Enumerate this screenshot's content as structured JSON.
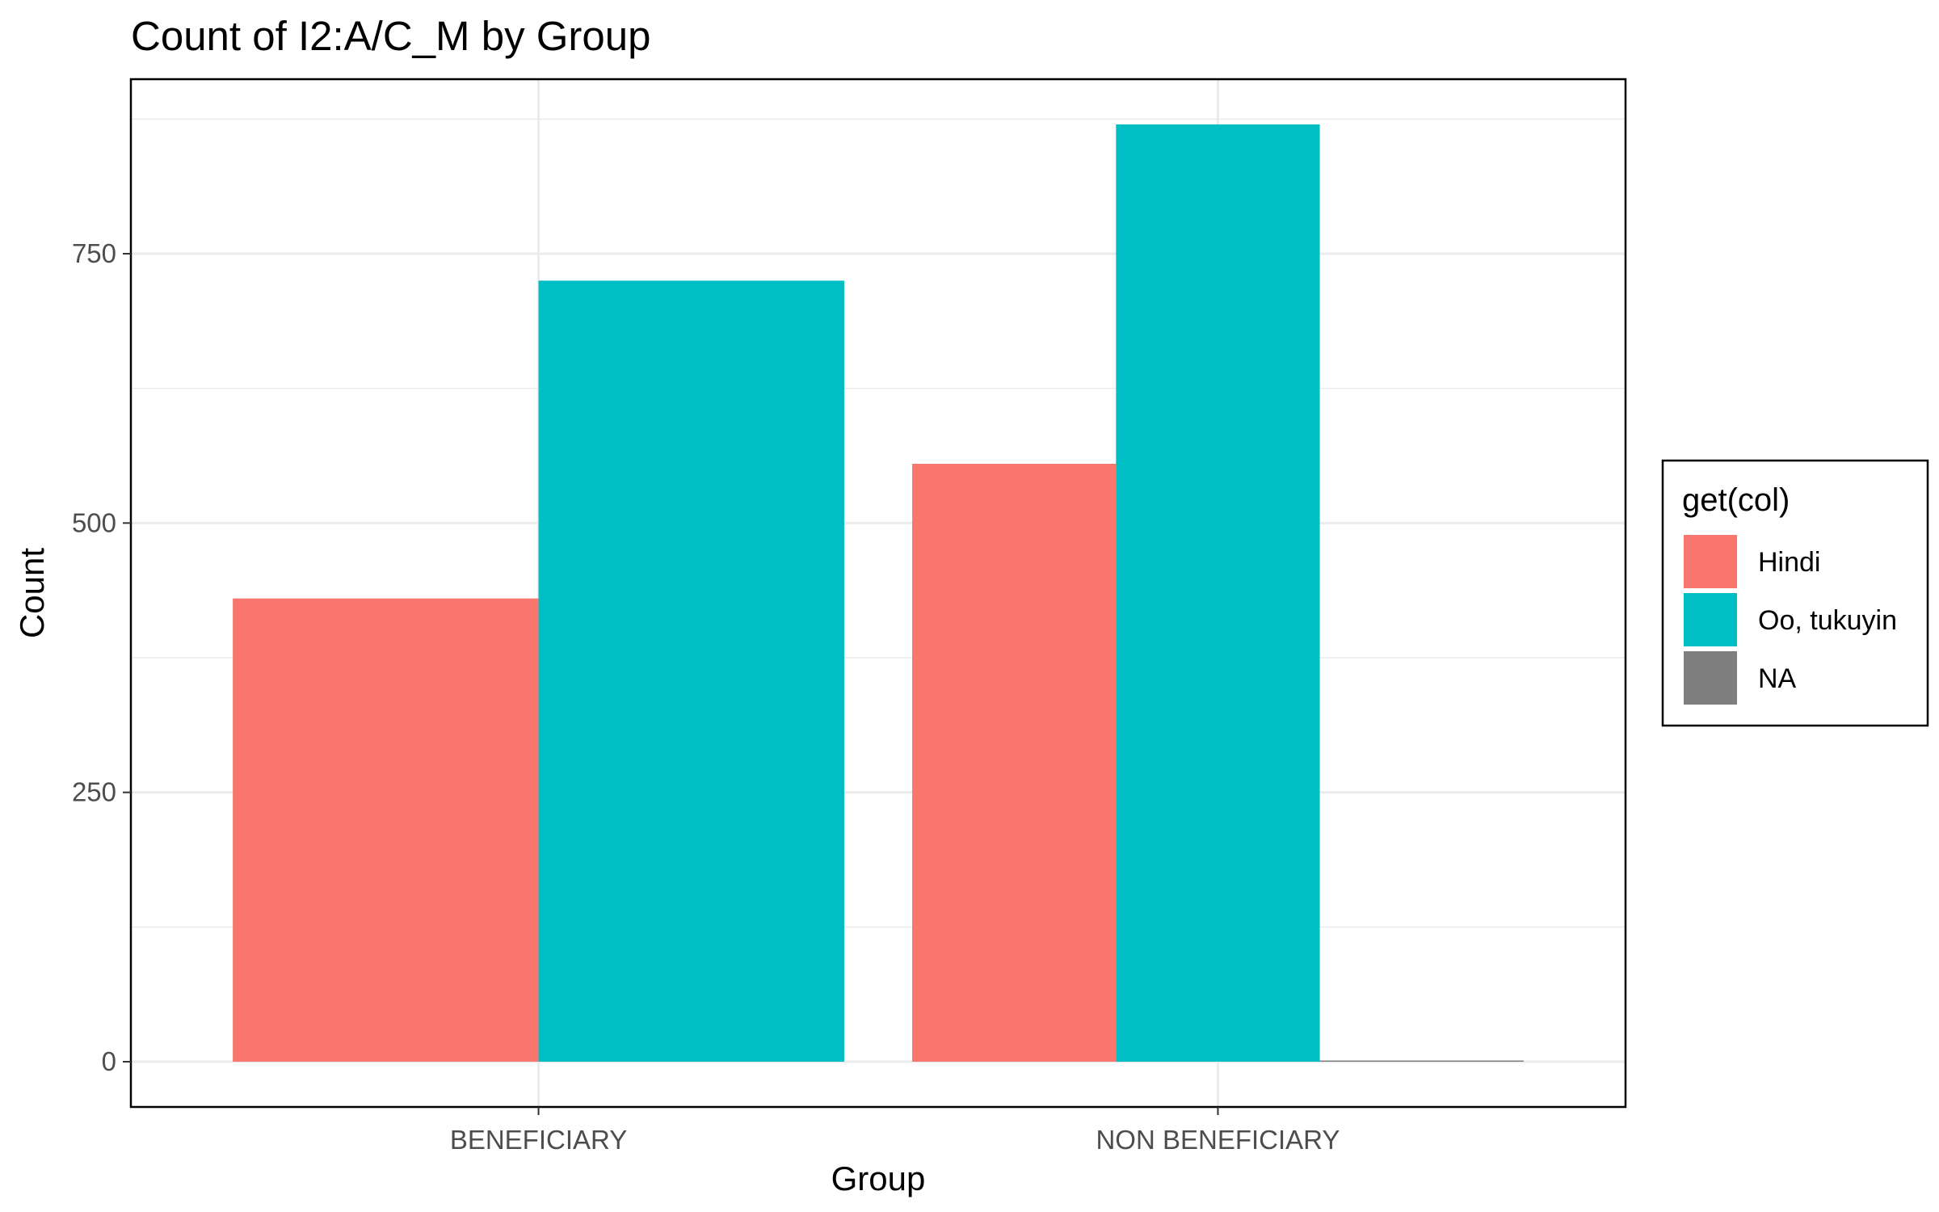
{
  "chart_data": {
    "type": "bar",
    "title": "Count of I2:A/C_M by Group",
    "xlabel": "Group",
    "ylabel": "Count",
    "categories": [
      "BENEFICIARY",
      "NON BENEFICIARY"
    ],
    "series": [
      {
        "name": "Hindi",
        "color": "#F8766D",
        "values": [
          430,
          555
        ]
      },
      {
        "name": "Oo, tukuyin",
        "color": "#00BFC4",
        "values": [
          725,
          870
        ]
      },
      {
        "name": "NA",
        "color": "#7F7F7F",
        "values": [
          null,
          1
        ]
      }
    ],
    "ylim": [
      -42,
      912
    ],
    "yticks": [
      0,
      250,
      500,
      750
    ],
    "ytick_labels": [
      "0",
      "250",
      "500",
      "750"
    ],
    "grid": true,
    "legend": {
      "title": "get(col)",
      "placement": "right"
    }
  }
}
